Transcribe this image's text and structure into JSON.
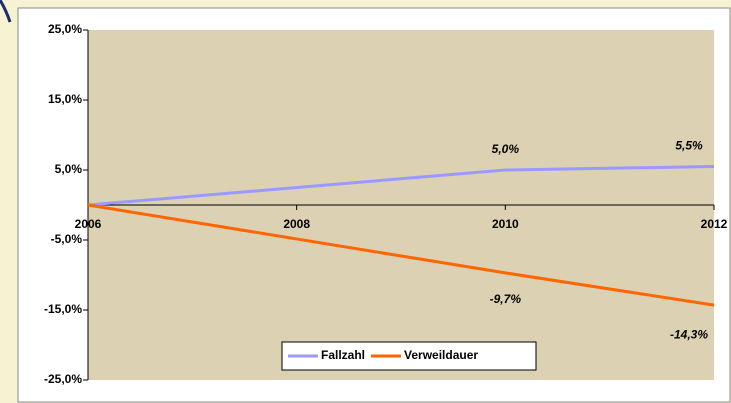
{
  "chart_data": {
    "type": "line",
    "x": [
      2006,
      2010,
      2012
    ],
    "series": [
      {
        "name": "Fallzahl",
        "color": "#9999ff",
        "values": [
          0,
          5.0,
          5.5
        ],
        "value_labels": [
          null,
          "5,0%",
          "5,5%"
        ]
      },
      {
        "name": "Verweildauer",
        "color": "#ff6600",
        "values": [
          0,
          -9.7,
          -14.3
        ],
        "value_labels": [
          null,
          "-9,7%",
          "-14,3%"
        ]
      }
    ],
    "xlim": [
      2006,
      2012
    ],
    "xticks": [
      2006,
      2008,
      2010,
      2012
    ],
    "ylim": [
      -25,
      25
    ],
    "yticks": [
      {
        "value": -25,
        "label": "-25,0%"
      },
      {
        "value": -15,
        "label": "-15,0%"
      },
      {
        "value": -5,
        "label": "-5,0%"
      },
      {
        "value": 5,
        "label": "5,0%"
      },
      {
        "value": 15,
        "label": "15,0%"
      },
      {
        "value": 25,
        "label": "25,0%"
      }
    ],
    "legend": "bottom"
  }
}
